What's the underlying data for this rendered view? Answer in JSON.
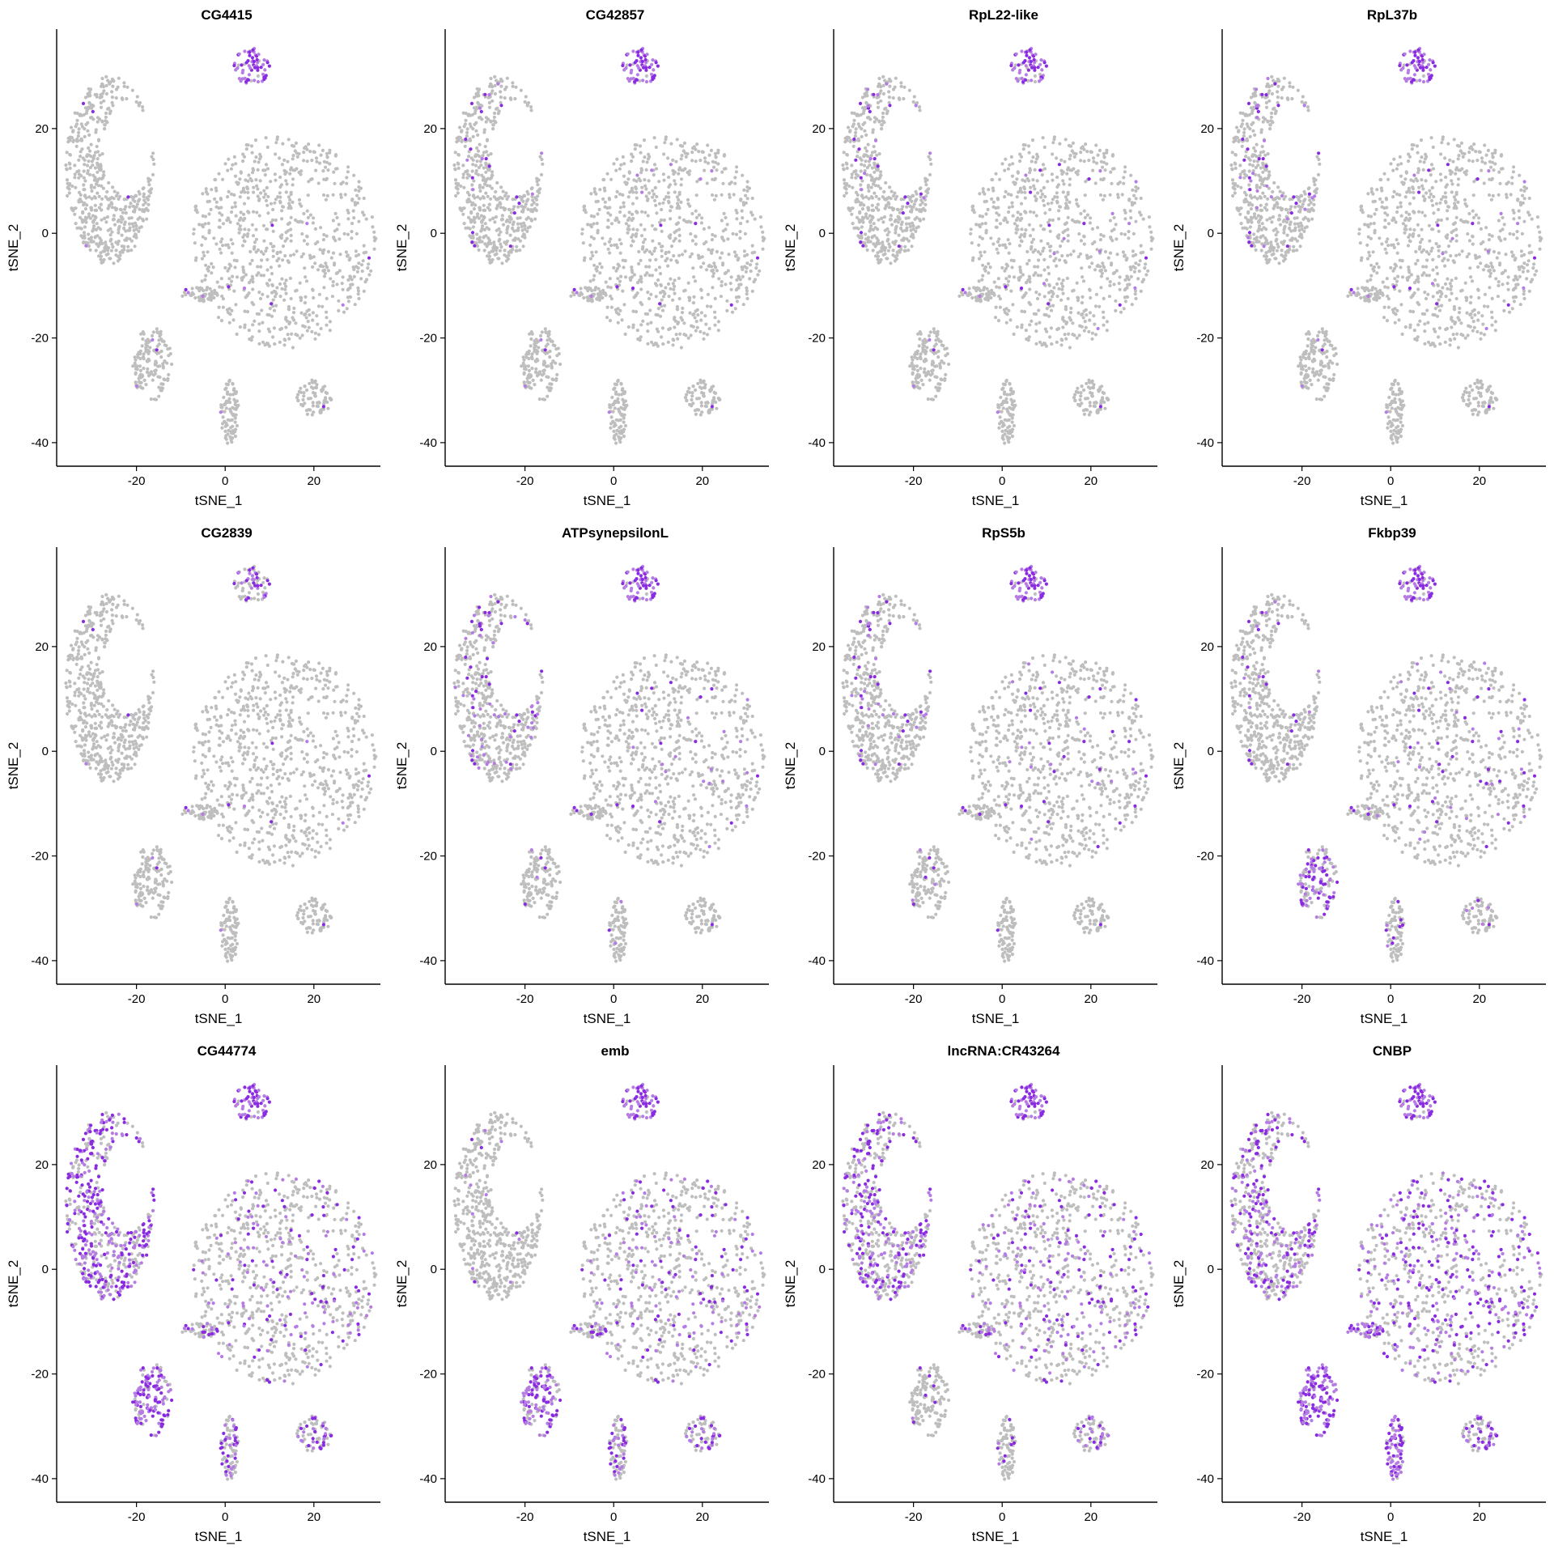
{
  "chart_data": {
    "type": "scatter",
    "xlabel": "tSNE_1",
    "ylabel": "tSNE_2",
    "xlim": [
      -38,
      35
    ],
    "ylim": [
      -44.5,
      39
    ],
    "xticks": [
      -20,
      0,
      20
    ],
    "yticks": [
      -40,
      -20,
      0,
      20
    ],
    "colors": {
      "low": "#bebebe",
      "high": "#8a2be2",
      "mid": "#b57ce3"
    },
    "clusters": [
      {
        "x": [
          2,
          10
        ],
        "y": [
          28,
          35.5
        ]
      },
      {
        "x": [
          -36,
          -16
        ],
        "y": [
          -6,
          30
        ]
      },
      {
        "x": [
          -8,
          34
        ],
        "y": [
          -22,
          19
        ]
      },
      {
        "x": [
          -10,
          -1
        ],
        "y": [
          -13,
          -10
        ]
      },
      {
        "x": [
          -21,
          -12
        ],
        "y": [
          -32,
          -18
        ]
      },
      {
        "x": [
          -1,
          3
        ],
        "y": [
          -40.5,
          -28
        ]
      },
      {
        "x": [
          16,
          24
        ],
        "y": [
          -35,
          -28
        ]
      }
    ],
    "panels": [
      {
        "gene": "CG4415",
        "expression": [
          0.85,
          0.01,
          0.01,
          0.01,
          0.01,
          0.01,
          0.01
        ]
      },
      {
        "gene": "CG42857",
        "expression": [
          0.85,
          0.05,
          0.02,
          0.01,
          0.01,
          0.01,
          0.01
        ]
      },
      {
        "gene": "RpL22-like",
        "expression": [
          0.8,
          0.07,
          0.03,
          0.01,
          0.01,
          0.01,
          0.01
        ]
      },
      {
        "gene": "RpL37b",
        "expression": [
          0.85,
          0.1,
          0.03,
          0.01,
          0.01,
          0.01,
          0.01
        ]
      },
      {
        "gene": "CG2839",
        "expression": [
          0.45,
          0.01,
          0.01,
          0.01,
          0.01,
          0.01,
          0.01
        ]
      },
      {
        "gene": "ATPsynepsilonL",
        "expression": [
          0.85,
          0.14,
          0.04,
          0.02,
          0.02,
          0.03,
          0.02
        ]
      },
      {
        "gene": "RpS5b",
        "expression": [
          0.9,
          0.1,
          0.06,
          0.03,
          0.03,
          0.02,
          0.02
        ]
      },
      {
        "gene": "Fkbp39",
        "expression": [
          0.85,
          0.05,
          0.08,
          0.1,
          0.55,
          0.1,
          0.12
        ]
      },
      {
        "gene": "CG44774",
        "expression": [
          0.95,
          0.65,
          0.2,
          0.3,
          0.8,
          0.4,
          0.45
        ]
      },
      {
        "gene": "emb",
        "expression": [
          0.9,
          0.02,
          0.2,
          0.3,
          0.7,
          0.35,
          0.4
        ]
      },
      {
        "gene": "lncRNA:CR43264",
        "expression": [
          0.95,
          0.45,
          0.25,
          0.25,
          0.05,
          0.1,
          0.35
        ]
      },
      {
        "gene": "CNBP",
        "expression": [
          0.95,
          0.4,
          0.4,
          0.75,
          0.95,
          0.85,
          0.55
        ]
      }
    ]
  }
}
